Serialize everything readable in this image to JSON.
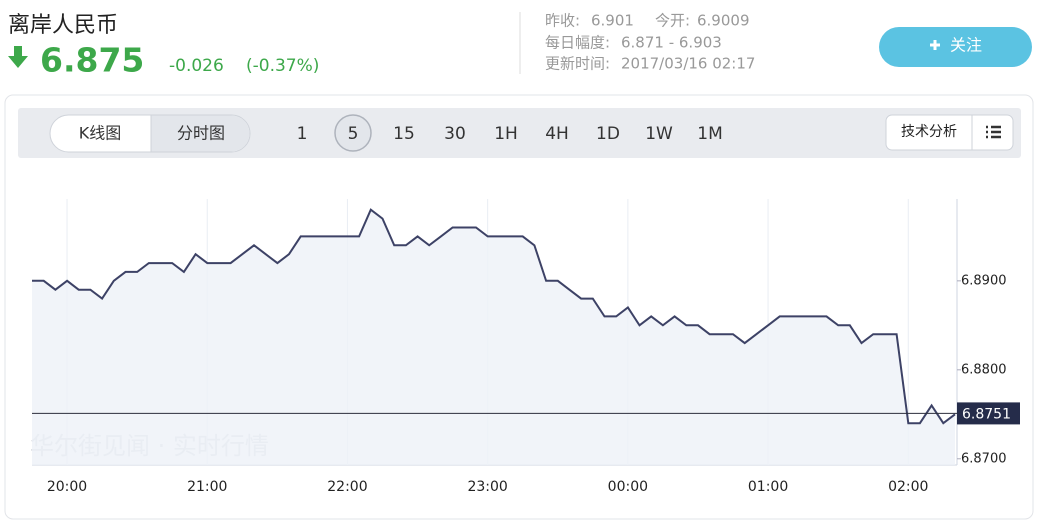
{
  "header": {
    "title": "离岸人民币",
    "price": "6.875",
    "change": "-0.026",
    "change_pct": "(-0.37%)",
    "stats": [
      {
        "label": "昨收:",
        "value": "6.901"
      },
      {
        "label": "今开:",
        "value": "6.9009"
      },
      {
        "label": "每日幅度:",
        "value": "6.871 - 6.903"
      },
      {
        "label": "更新时间:",
        "value": "2017/03/16 02:17"
      }
    ],
    "follow_button": "关注"
  },
  "toolbar": {
    "chart_modes": [
      "K线图",
      "分时图"
    ],
    "active_mode": 1,
    "intervals": [
      "1",
      "5",
      "15",
      "30",
      "1H",
      "4H",
      "1D",
      "1W",
      "1M"
    ],
    "active_interval": 1,
    "analysis_button": "技术分析"
  },
  "chart_data": {
    "type": "line",
    "watermark": "华尔街见闻 · 实时行情",
    "color": "#3d4266",
    "fill": "#eef1f7",
    "categories": [
      null,
      null,
      null,
      "20:00",
      null,
      null,
      null,
      null,
      null,
      null,
      null,
      null,
      null,
      null,
      null,
      "21:00",
      null,
      null,
      null,
      null,
      null,
      null,
      null,
      null,
      null,
      null,
      null,
      "22:00",
      null,
      null,
      null,
      null,
      null,
      null,
      null,
      null,
      null,
      null,
      null,
      "23:00",
      null,
      null,
      null,
      null,
      null,
      null,
      null,
      null,
      null,
      null,
      null,
      "00:00",
      null,
      null,
      null,
      null,
      null,
      null,
      null,
      null,
      null,
      null,
      null,
      "01:00",
      null,
      null,
      null,
      null,
      null,
      null,
      null,
      null,
      null,
      null,
      null,
      "02:00",
      null,
      null,
      null,
      null
    ],
    "values": [
      6.89,
      6.89,
      6.889,
      6.89,
      6.889,
      6.889,
      6.888,
      6.89,
      6.891,
      6.891,
      6.892,
      6.892,
      6.892,
      6.891,
      6.893,
      6.892,
      6.892,
      6.892,
      6.893,
      6.894,
      6.893,
      6.892,
      6.893,
      6.895,
      6.895,
      6.895,
      6.895,
      6.895,
      6.895,
      6.898,
      6.897,
      6.894,
      6.894,
      6.895,
      6.894,
      6.895,
      6.896,
      6.896,
      6.896,
      6.895,
      6.895,
      6.895,
      6.895,
      6.894,
      6.89,
      6.89,
      6.889,
      6.888,
      6.888,
      6.886,
      6.886,
      6.887,
      6.885,
      6.886,
      6.885,
      6.886,
      6.885,
      6.885,
      6.884,
      6.884,
      6.884,
      6.883,
      6.884,
      6.885,
      6.886,
      6.886,
      6.886,
      6.886,
      6.886,
      6.885,
      6.885,
      6.883,
      6.884,
      6.884,
      6.884,
      6.874,
      6.874,
      6.876,
      6.874,
      6.875
    ],
    "ylim": [
      6.8693,
      6.8992
    ],
    "yticks": [
      {
        "value": 6.87,
        "label": "6.8700"
      },
      {
        "value": 6.88,
        "label": "6.8800"
      },
      {
        "value": 6.89,
        "label": "6.8900"
      }
    ],
    "last_value": 6.8751,
    "xgrid": true
  }
}
